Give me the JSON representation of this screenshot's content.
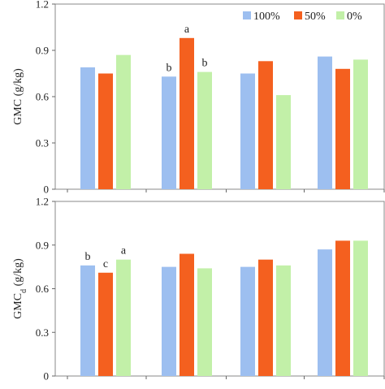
{
  "chart_data": [
    {
      "type": "bar",
      "panel": "top",
      "ylabel": "GMC (g/kg)",
      "ylabel_subscript": "",
      "ylim": [
        0,
        1.2
      ],
      "yticks": [
        "0",
        "0.3",
        "0.6",
        "0.9",
        "1.2"
      ],
      "categories": [
        "",
        "",
        "",
        ""
      ],
      "series": [
        {
          "name": "100%",
          "color": "#9dbff0",
          "values": [
            0.79,
            0.73,
            0.75,
            0.86
          ],
          "labels": [
            "",
            "b",
            "",
            ""
          ]
        },
        {
          "name": "50%",
          "color": "#f4601f",
          "values": [
            0.75,
            0.98,
            0.83,
            0.78
          ],
          "labels": [
            "",
            "a",
            "",
            ""
          ]
        },
        {
          "name": "0%",
          "color": "#c2f0a8",
          "values": [
            0.87,
            0.76,
            0.61,
            0.84
          ],
          "labels": [
            "",
            "b",
            "",
            ""
          ]
        }
      ],
      "legend": "top-right",
      "grid": false
    },
    {
      "type": "bar",
      "panel": "bottom",
      "ylabel": "GMC",
      "ylabel_subscript": "d",
      "ylabel_suffix": " (g/kg)",
      "ylim": [
        0,
        1.2
      ],
      "yticks": [
        "0",
        "0.3",
        "0.6",
        "0.9",
        "1.2"
      ],
      "categories": [
        "",
        "",
        "",
        ""
      ],
      "series": [
        {
          "name": "100%",
          "color": "#9dbff0",
          "values": [
            0.76,
            0.75,
            0.75,
            0.87
          ],
          "labels": [
            "b",
            "",
            "",
            ""
          ]
        },
        {
          "name": "50%",
          "color": "#f4601f",
          "values": [
            0.71,
            0.84,
            0.8,
            0.93
          ],
          "labels": [
            "c",
            "",
            "",
            ""
          ]
        },
        {
          "name": "0%",
          "color": "#c2f0a8",
          "values": [
            0.8,
            0.74,
            0.76,
            0.93
          ],
          "labels": [
            "a",
            "",
            "",
            ""
          ]
        }
      ],
      "legend": "none",
      "grid": false
    }
  ]
}
